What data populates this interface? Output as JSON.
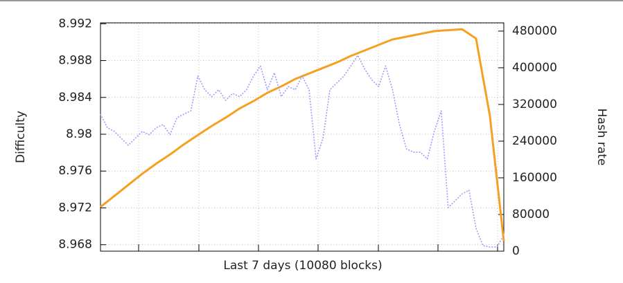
{
  "chart_data": {
    "type": "line",
    "x_label": "Last 7 days (10080 blocks)",
    "y_label": "Difficulty",
    "y2_label": "Hash rate",
    "ylim": [
      8.9673,
      8.9921
    ],
    "yticks": [
      8.968,
      8.972,
      8.976,
      8.98,
      8.984,
      8.988,
      8.992
    ],
    "y2lim": [
      0,
      498000
    ],
    "y2ticks": [
      0,
      80000,
      160000,
      240000,
      320000,
      400000,
      480000
    ],
    "grid": true,
    "series": [
      {
        "name": "Difficulty",
        "color": "#f5a020",
        "style": "solid",
        "values": [
          8.9721,
          8.9733,
          8.9745,
          8.9757,
          8.9768,
          8.9778,
          8.9789,
          8.9799,
          8.9809,
          8.9818,
          8.9828,
          8.9836,
          8.9845,
          8.9852,
          8.986,
          8.9866,
          8.9872,
          8.9878,
          8.9885,
          8.9891,
          8.9897,
          8.9903,
          8.9906,
          8.9909,
          8.9912,
          8.9913,
          8.9914,
          8.9904,
          8.982,
          8.9684
        ]
      },
      {
        "name": "Hash rate",
        "color": "#9b9bff",
        "style": "dotted",
        "axis": "y2",
        "values": [
          299000,
          269000,
          261000,
          246000,
          231000,
          246000,
          261000,
          254000,
          269000,
          276000,
          254000,
          291000,
          299000,
          306000,
          382000,
          352000,
          337000,
          352000,
          329000,
          344000,
          337000,
          352000,
          382000,
          404000,
          352000,
          389000,
          337000,
          359000,
          352000,
          382000,
          352000,
          201000,
          246000,
          352000,
          367000,
          382000,
          404000,
          427000,
          397000,
          374000,
          359000,
          404000,
          352000,
          276000,
          223000,
          216000,
          216000,
          201000,
          261000,
          306000,
          95000,
          110000,
          125000,
          133000,
          50000,
          12000,
          9000,
          9000,
          35000
        ]
      }
    ]
  }
}
